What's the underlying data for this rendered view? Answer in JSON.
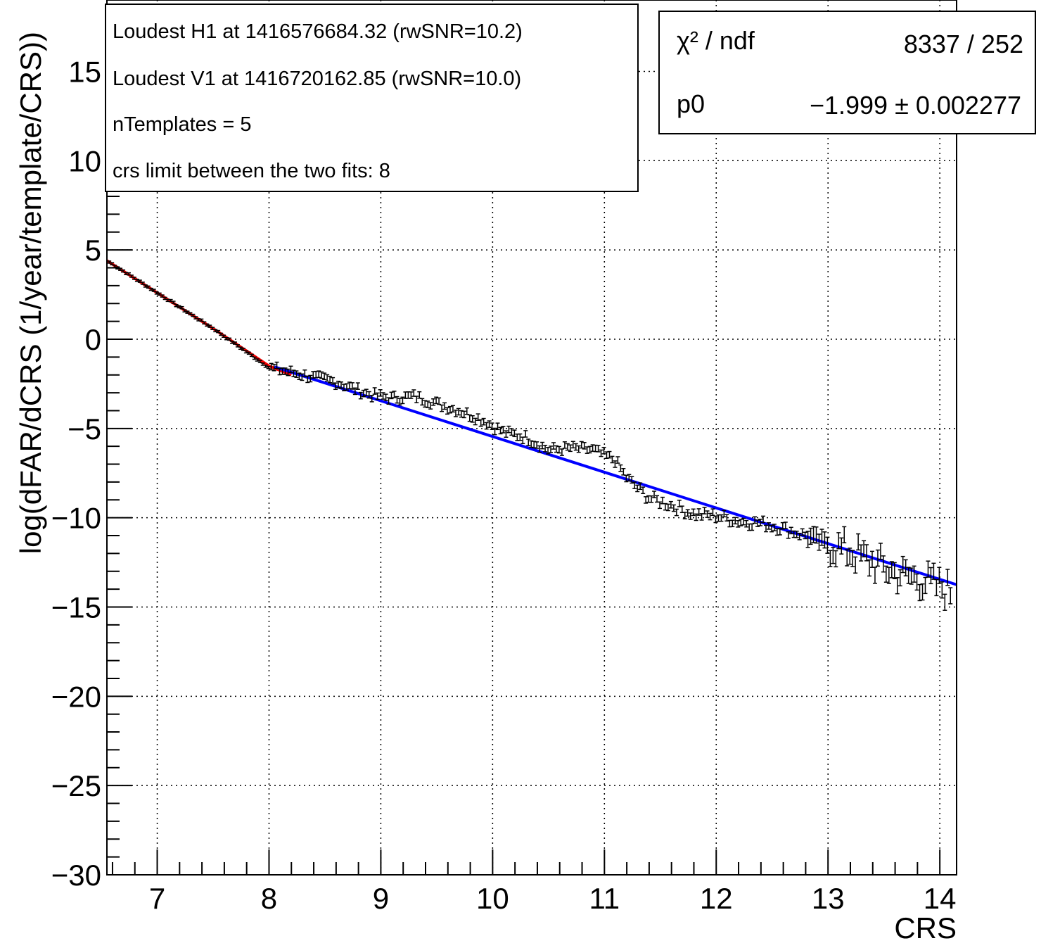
{
  "chart_data": {
    "type": "scatter",
    "xlabel": "CRS",
    "ylabel": "log(dFAR/dCRS (1/year/template/CRS))",
    "xlim": [
      6.55,
      14.15
    ],
    "ylim": [
      -30,
      19
    ],
    "grid": true,
    "x_ticks": [
      "7",
      "8",
      "9",
      "10",
      "11",
      "12",
      "13",
      "14"
    ],
    "y_ticks": [
      "15",
      "10",
      "5",
      "0",
      "−5",
      "−10",
      "−15",
      "−20",
      "−25",
      "−30"
    ],
    "info_box": [
      "Loudest H1 at 1416576684.32 (rwSNR=10.2)",
      "Loudest V1 at 1416720162.85 (rwSNR=10.0)",
      "nTemplates = 5",
      "crs limit between the two fits: 8"
    ],
    "stats_box": {
      "chi2_label": "χ² / ndf",
      "chi2_value": "8337 / 252",
      "p0_label": "p0",
      "p0_value": "−1.999 ± 0.002277"
    },
    "series": [
      {
        "kind": "points_with_errors",
        "color": "#000000",
        "anchors": [
          [
            6.55,
            4.4
          ],
          [
            7.0,
            2.6
          ],
          [
            7.5,
            0.6
          ],
          [
            8.0,
            -1.6
          ],
          [
            8.3,
            -2.0
          ],
          [
            8.6,
            -2.4
          ],
          [
            8.9,
            -3.1
          ],
          [
            9.1,
            -3.3
          ],
          [
            9.3,
            -3.2
          ],
          [
            9.5,
            -3.6
          ],
          [
            9.7,
            -4.0
          ],
          [
            9.9,
            -4.5
          ],
          [
            10.1,
            -5.2
          ],
          [
            10.3,
            -5.5
          ],
          [
            10.5,
            -6.2
          ],
          [
            10.7,
            -6.1
          ],
          [
            10.9,
            -6.2
          ],
          [
            11.0,
            -6.5
          ],
          [
            11.1,
            -6.8
          ],
          [
            11.2,
            -7.8
          ],
          [
            11.4,
            -8.9
          ],
          [
            11.6,
            -9.3
          ],
          [
            11.8,
            -9.8
          ],
          [
            12.0,
            -9.9
          ],
          [
            12.2,
            -10.2
          ],
          [
            12.4,
            -10.3
          ],
          [
            12.6,
            -10.6
          ],
          [
            12.8,
            -11.0
          ],
          [
            13.0,
            -11.5
          ],
          [
            13.2,
            -11.9
          ],
          [
            13.4,
            -12.5
          ],
          [
            13.6,
            -13.1
          ],
          [
            13.8,
            -13.4
          ],
          [
            14.0,
            -13.9
          ],
          [
            14.1,
            -14.1
          ]
        ]
      },
      {
        "kind": "fit_line",
        "color": "#ff0000",
        "x": [
          6.55,
          7.0,
          7.5,
          8.0,
          8.2
        ],
        "y": [
          4.4,
          2.6,
          0.6,
          -1.5,
          -2.0
        ]
      },
      {
        "kind": "fit_line",
        "color": "#0000ff",
        "x": [
          8.05,
          14.15
        ],
        "y": [
          -1.55,
          -13.75
        ]
      }
    ]
  }
}
